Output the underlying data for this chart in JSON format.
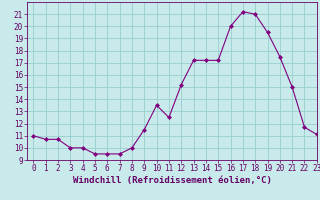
{
  "x": [
    0,
    1,
    2,
    3,
    4,
    5,
    6,
    7,
    8,
    9,
    10,
    11,
    12,
    13,
    14,
    15,
    16,
    17,
    18,
    19,
    20,
    21,
    22,
    23
  ],
  "y": [
    11,
    10.7,
    10.7,
    10,
    10,
    9.5,
    9.5,
    9.5,
    10,
    11.5,
    13.5,
    12.5,
    15.2,
    17.2,
    17.2,
    17.2,
    20,
    21.2,
    21,
    19.5,
    17.5,
    15,
    11.7,
    11.1
  ],
  "line_color": "#800080",
  "marker_color": "#800080",
  "bg_color": "#c8eaea",
  "grid_color": "#9acece",
  "xlabel": "Windchill (Refroidissement éolien,°C)",
  "ylim": [
    9,
    22
  ],
  "xlim": [
    -0.5,
    23
  ],
  "yticks": [
    9,
    10,
    11,
    12,
    13,
    14,
    15,
    16,
    17,
    18,
    19,
    20,
    21
  ],
  "xticks": [
    0,
    1,
    2,
    3,
    4,
    5,
    6,
    7,
    8,
    9,
    10,
    11,
    12,
    13,
    14,
    15,
    16,
    17,
    18,
    19,
    20,
    21,
    22,
    23
  ],
  "tick_fontsize": 5.5,
  "xlabel_fontsize": 6.5
}
